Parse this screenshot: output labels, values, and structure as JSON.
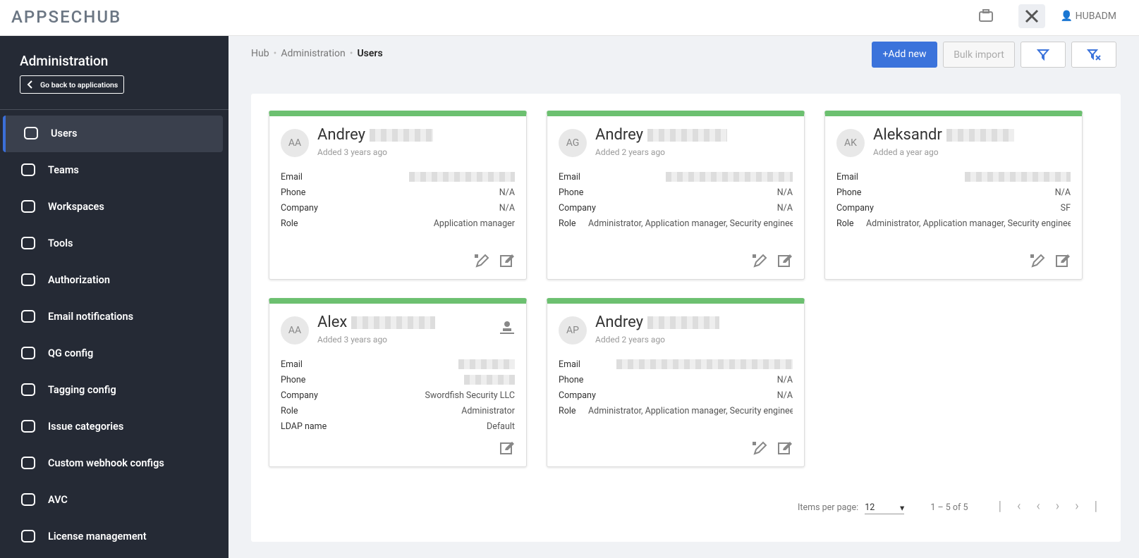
{
  "header": {
    "logo": "APPSECHUB",
    "user": "HUBADM"
  },
  "sidebar": {
    "title": "Administration",
    "back": "Go back to applications",
    "items": [
      "Users",
      "Teams",
      "Workspaces",
      "Tools",
      "Authorization",
      "Email notifications",
      "QG config",
      "Tagging config",
      "Issue categories",
      "Custom webhook configs",
      "AVC",
      "License management"
    ]
  },
  "breadcrumbs": [
    "Hub",
    "Administration",
    "Users"
  ],
  "actions": {
    "add": "+Add new",
    "bulk": "Bulk import"
  },
  "cards": [
    {
      "initials": "AA",
      "name": "Andrey",
      "added": "Added 3 years ago",
      "fields": [
        {
          "label": "Email"
        },
        {
          "label": "Phone",
          "value": "N/A"
        },
        {
          "label": "Company",
          "value": "N/A"
        },
        {
          "label": "Role",
          "value": "Application manager"
        }
      ]
    },
    {
      "initials": "AG",
      "name": "Andrey",
      "added": "Added 2 years ago",
      "fields": [
        {
          "label": "Email"
        },
        {
          "label": "Phone",
          "value": "N/A"
        },
        {
          "label": "Company",
          "value": "N/A"
        },
        {
          "label": "Role",
          "value": "Administrator, Application manager, Security engineer, ..."
        }
      ]
    },
    {
      "initials": "AK",
      "name": "Aleksandr",
      "added": "Added a year ago",
      "fields": [
        {
          "label": "Email"
        },
        {
          "label": "Phone",
          "value": "N/A"
        },
        {
          "label": "Company",
          "value": "SF"
        },
        {
          "label": "Role",
          "value": "Administrator, Application manager, Security engineer"
        }
      ]
    },
    {
      "initials": "AA",
      "name": "Alex",
      "added": "Added 3 years ago",
      "ldap": true,
      "fields": [
        {
          "label": "Email"
        },
        {
          "label": "Phone"
        },
        {
          "label": "Company",
          "value": "Swordfish Security LLC"
        },
        {
          "label": "Role",
          "value": "Administrator"
        },
        {
          "label": "LDAP name",
          "value": "Default"
        }
      ]
    },
    {
      "initials": "AP",
      "name": "Andrey",
      "added": "Added 2 years ago",
      "fields": [
        {
          "label": "Email"
        },
        {
          "label": "Phone",
          "value": "N/A"
        },
        {
          "label": "Company",
          "value": "N/A"
        },
        {
          "label": "Role",
          "value": "Administrator, Application manager, Security engineer, ..."
        }
      ]
    }
  ],
  "pagination": {
    "label": "Items per page:",
    "per_page": "12",
    "range": "1 – 5 of 5"
  }
}
